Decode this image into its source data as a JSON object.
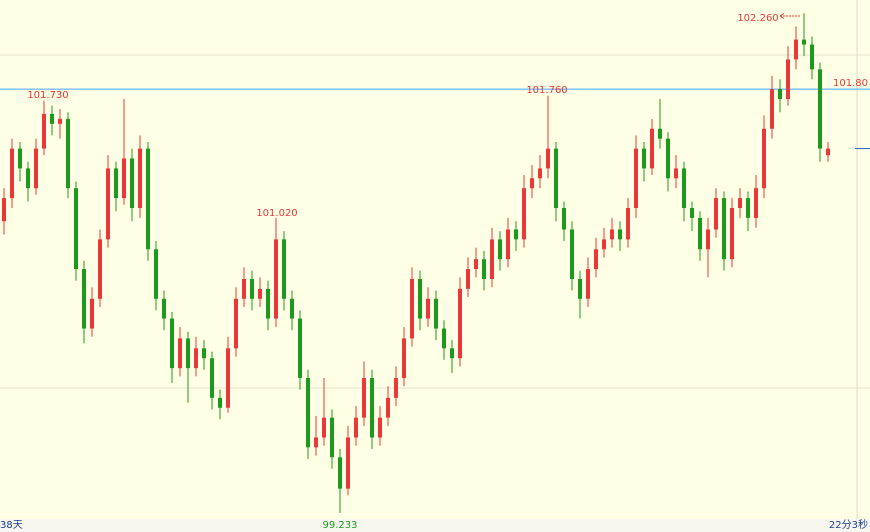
{
  "chart_data": {
    "type": "candlestick",
    "up_color": "#e8383a",
    "down_color": "#1d9a1d",
    "background": "#ffffe6",
    "ylim": [
      99.19,
      102.34
    ],
    "hline": {
      "value": 101.8,
      "label": "101.80",
      "color": "#49a0ff"
    },
    "x_labels": [
      "38天",
      "22分3秒"
    ],
    "annotations": [
      "101.730",
      "101.020",
      "101.760",
      "99.233",
      "102.260"
    ],
    "candles": [
      [
        101.0,
        101.2,
        100.92,
        101.14
      ],
      [
        101.14,
        101.5,
        101.08,
        101.44
      ],
      [
        101.44,
        101.48,
        101.24,
        101.32
      ],
      [
        101.32,
        101.36,
        101.12,
        101.2
      ],
      [
        101.2,
        101.5,
        101.16,
        101.44
      ],
      [
        101.44,
        101.73,
        101.4,
        101.65
      ],
      [
        101.65,
        101.7,
        101.52,
        101.59
      ],
      [
        101.59,
        101.68,
        101.5,
        101.62
      ],
      [
        101.62,
        101.66,
        101.14,
        101.2
      ],
      [
        101.2,
        101.24,
        100.64,
        100.71
      ],
      [
        100.71,
        100.76,
        100.26,
        100.35
      ],
      [
        100.35,
        100.6,
        100.3,
        100.53
      ],
      [
        100.53,
        100.95,
        100.48,
        100.89
      ],
      [
        100.89,
        101.4,
        100.84,
        101.32
      ],
      [
        101.32,
        101.36,
        101.06,
        101.14
      ],
      [
        101.14,
        101.74,
        101.1,
        101.38
      ],
      [
        101.38,
        101.44,
        101.0,
        101.08
      ],
      [
        101.08,
        101.52,
        101.02,
        101.44
      ],
      [
        101.44,
        101.48,
        100.76,
        100.83
      ],
      [
        100.83,
        100.88,
        100.46,
        100.53
      ],
      [
        100.53,
        100.58,
        100.34,
        100.41
      ],
      [
        100.41,
        100.45,
        100.02,
        100.11
      ],
      [
        100.11,
        100.36,
        100.06,
        100.29
      ],
      [
        100.29,
        100.33,
        99.9,
        100.11
      ],
      [
        100.11,
        100.3,
        100.06,
        100.23
      ],
      [
        100.23,
        100.28,
        100.1,
        100.17
      ],
      [
        100.17,
        100.21,
        99.86,
        99.93
      ],
      [
        99.93,
        99.98,
        99.8,
        99.87
      ],
      [
        99.87,
        100.3,
        99.84,
        100.23
      ],
      [
        100.23,
        100.6,
        100.18,
        100.53
      ],
      [
        100.53,
        100.72,
        100.48,
        100.65
      ],
      [
        100.65,
        100.7,
        100.46,
        100.53
      ],
      [
        100.53,
        100.66,
        100.48,
        100.59
      ],
      [
        100.59,
        100.64,
        100.34,
        100.41
      ],
      [
        100.41,
        101.02,
        100.36,
        100.89
      ],
      [
        100.89,
        100.94,
        100.46,
        100.53
      ],
      [
        100.53,
        100.58,
        100.34,
        100.41
      ],
      [
        100.41,
        100.46,
        99.98,
        100.05
      ],
      [
        100.05,
        100.1,
        99.56,
        99.63
      ],
      [
        99.63,
        99.82,
        99.58,
        99.69
      ],
      [
        99.69,
        100.05,
        99.64,
        99.81
      ],
      [
        99.81,
        99.86,
        99.5,
        99.57
      ],
      [
        99.57,
        99.62,
        99.233,
        99.38
      ],
      [
        99.38,
        99.76,
        99.34,
        99.69
      ],
      [
        99.69,
        99.88,
        99.64,
        99.81
      ],
      [
        99.81,
        100.15,
        99.76,
        100.05
      ],
      [
        100.05,
        100.1,
        99.62,
        99.69
      ],
      [
        99.69,
        99.88,
        99.64,
        99.81
      ],
      [
        99.81,
        100.0,
        99.76,
        99.93
      ],
      [
        99.93,
        100.12,
        99.88,
        100.05
      ],
      [
        100.05,
        100.36,
        100.0,
        100.29
      ],
      [
        100.29,
        100.72,
        100.24,
        100.65
      ],
      [
        100.65,
        100.7,
        100.34,
        100.41
      ],
      [
        100.41,
        100.6,
        100.36,
        100.53
      ],
      [
        100.53,
        100.58,
        100.28,
        100.35
      ],
      [
        100.35,
        100.4,
        100.16,
        100.23
      ],
      [
        100.23,
        100.28,
        100.08,
        100.17
      ],
      [
        100.17,
        100.66,
        100.12,
        100.59
      ],
      [
        100.59,
        100.78,
        100.54,
        100.71
      ],
      [
        100.71,
        100.84,
        100.66,
        100.77
      ],
      [
        100.77,
        100.82,
        100.58,
        100.65
      ],
      [
        100.65,
        100.96,
        100.6,
        100.89
      ],
      [
        100.89,
        100.94,
        100.7,
        100.77
      ],
      [
        100.77,
        101.02,
        100.72,
        100.95
      ],
      [
        100.95,
        101.0,
        100.82,
        100.89
      ],
      [
        100.89,
        101.28,
        100.84,
        101.2
      ],
      [
        101.2,
        101.34,
        101.14,
        101.26
      ],
      [
        101.26,
        101.4,
        101.2,
        101.32
      ],
      [
        101.32,
        101.76,
        101.26,
        101.44
      ],
      [
        101.44,
        101.48,
        101.0,
        101.08
      ],
      [
        101.08,
        101.12,
        100.88,
        100.95
      ],
      [
        100.95,
        101.0,
        100.58,
        100.65
      ],
      [
        100.65,
        100.7,
        100.41,
        100.53
      ],
      [
        100.53,
        100.78,
        100.48,
        100.71
      ],
      [
        100.71,
        100.9,
        100.66,
        100.83
      ],
      [
        100.83,
        100.96,
        100.78,
        100.89
      ],
      [
        100.89,
        101.02,
        100.84,
        100.95
      ],
      [
        100.95,
        101.0,
        100.82,
        100.89
      ],
      [
        100.89,
        101.14,
        100.84,
        101.08
      ],
      [
        101.08,
        101.52,
        101.02,
        101.44
      ],
      [
        101.44,
        101.48,
        101.24,
        101.32
      ],
      [
        101.32,
        101.62,
        101.28,
        101.56
      ],
      [
        101.56,
        101.74,
        101.44,
        101.5
      ],
      [
        101.5,
        101.54,
        101.18,
        101.26
      ],
      [
        101.26,
        101.4,
        101.2,
        101.32
      ],
      [
        101.32,
        101.36,
        101.0,
        101.08
      ],
      [
        101.08,
        101.12,
        100.94,
        101.02
      ],
      [
        101.02,
        101.06,
        100.76,
        100.83
      ],
      [
        100.83,
        101.02,
        100.66,
        100.95
      ],
      [
        100.95,
        101.2,
        100.9,
        101.14
      ],
      [
        101.14,
        101.18,
        100.7,
        100.77
      ],
      [
        100.77,
        101.14,
        100.72,
        101.08
      ],
      [
        101.08,
        101.2,
        101.02,
        101.14
      ],
      [
        101.14,
        101.18,
        100.94,
        101.02
      ],
      [
        101.02,
        101.28,
        100.96,
        101.2
      ],
      [
        101.2,
        101.64,
        101.14,
        101.56
      ],
      [
        101.56,
        101.88,
        101.5,
        101.8
      ],
      [
        101.8,
        101.86,
        101.66,
        101.74
      ],
      [
        101.74,
        102.06,
        101.7,
        101.98
      ],
      [
        101.98,
        102.18,
        101.92,
        102.1
      ],
      [
        102.1,
        102.26,
        102.0,
        102.07
      ],
      [
        102.07,
        102.12,
        101.86,
        101.92
      ],
      [
        101.92,
        101.96,
        101.36,
        101.44
      ],
      [
        101.4,
        101.48,
        101.36,
        101.44
      ]
    ]
  }
}
